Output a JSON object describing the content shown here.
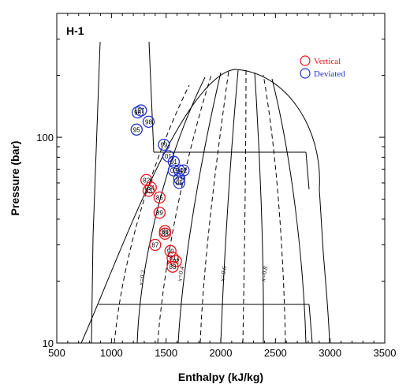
{
  "chart_data": {
    "type": "scatter",
    "panel_label": "H-1",
    "xlabel": "Enthalpy  (kJ/kg)",
    "ylabel": "Pressure  (bar)",
    "x_scale": "linear",
    "y_scale": "log",
    "xlim": [
      500,
      3500
    ],
    "ylim": [
      10,
      400
    ],
    "x_ticks": [
      "500",
      "1000",
      "1500",
      "2000",
      "2500",
      "3000",
      "3500"
    ],
    "y_ticks": [
      "10",
      "100"
    ],
    "quality_labels": [
      "x=0.2",
      "x=0.4",
      "x=0.6",
      "x=0.8"
    ],
    "legend_position": "top-right",
    "series": [
      {
        "name": "Vertical",
        "color": "#e8141c",
        "points": [
          {
            "label": "82",
            "x": 1320,
            "y": 62
          },
          {
            "label": "84",
            "x": 1360,
            "y": 57
          },
          {
            "label": "83",
            "x": 1340,
            "y": 55
          },
          {
            "label": "85",
            "x": 1440,
            "y": 51
          },
          {
            "label": "89",
            "x": 1440,
            "y": 43
          },
          {
            "label": "86",
            "x": 1490,
            "y": 35
          },
          {
            "label": "88",
            "x": 1490,
            "y": 34
          },
          {
            "label": "87",
            "x": 1400,
            "y": 30
          },
          {
            "label": "90",
            "x": 1540,
            "y": 28
          },
          {
            "label": "81",
            "x": 1560,
            "y": 26
          },
          {
            "label": "92",
            "x": 1590,
            "y": 25
          },
          {
            "label": "83",
            "x": 1560,
            "y": 23.5
          }
        ]
      },
      {
        "name": "Deviated",
        "color": "#2233cc",
        "points": [
          {
            "label": "97",
            "x": 1270,
            "y": 135
          },
          {
            "label": "96",
            "x": 1240,
            "y": 132
          },
          {
            "label": "98",
            "x": 1340,
            "y": 119
          },
          {
            "label": "95",
            "x": 1230,
            "y": 109
          },
          {
            "label": "99",
            "x": 1480,
            "y": 92
          },
          {
            "label": "01",
            "x": 1520,
            "y": 81
          },
          {
            "label": "91",
            "x": 1570,
            "y": 76
          },
          {
            "label": "03",
            "x": 1570,
            "y": 69
          },
          {
            "label": "94",
            "x": 1620,
            "y": 69
          },
          {
            "label": "02",
            "x": 1660,
            "y": 69
          },
          {
            "label": "93",
            "x": 1620,
            "y": 63
          },
          {
            "label": "05",
            "x": 1620,
            "y": 60
          }
        ]
      }
    ]
  }
}
